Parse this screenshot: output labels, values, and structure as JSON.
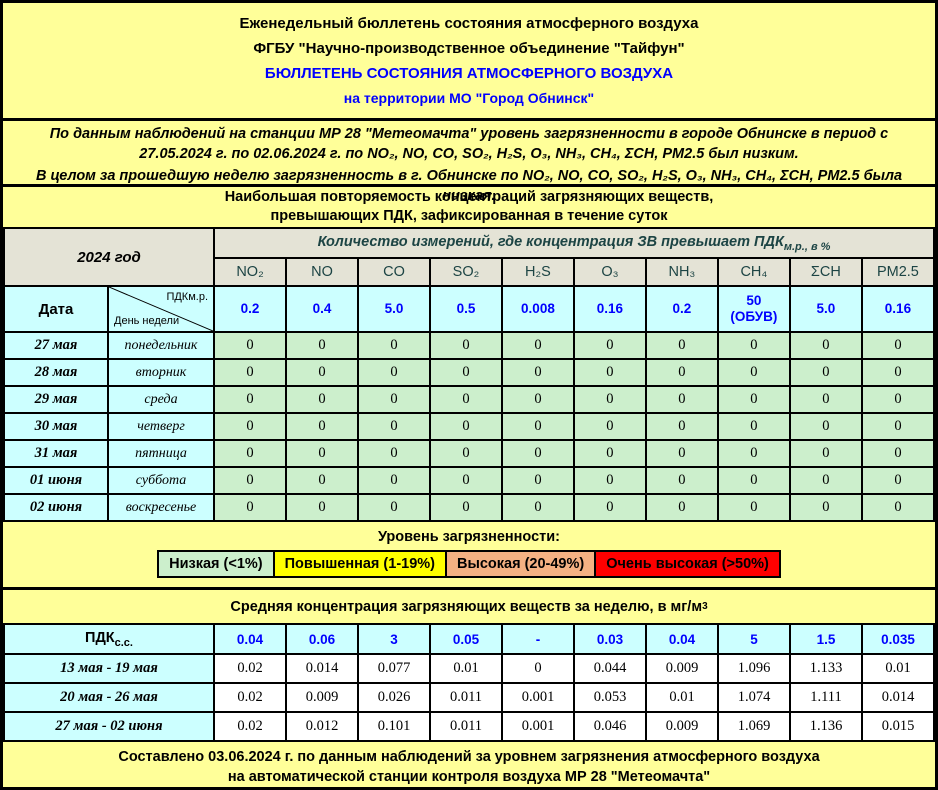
{
  "colors": {
    "page_bg": "#FFFF99",
    "header_band_bg": "#E4E3D6",
    "cyan_cell_bg": "#CCFFFF",
    "green_cell_bg": "#CCEFCC",
    "white_cell_bg": "#FFFFFF",
    "value_text_blue": "#0000FF",
    "title_blue": "#0000FF",
    "header_text_teal": "#1C4444",
    "border_black": "#000000"
  },
  "title_block": {
    "line1": "Еженедельный бюллетень состояния атмосферного воздуха",
    "line2": "ФГБУ \"Научно-производственное объединение \"Тайфун\"",
    "line3": "БЮЛЛЕТЕНЬ СОСТОЯНИЯ АТМОСФЕРНОГО ВОЗДУХА",
    "line4": "на территории МО \"Город Обнинск\""
  },
  "summary": {
    "paragraph1": "По данным наблюдений на станции МР 28 \"Метеомачта\" уровень загрязненности в городе Обнинске в период с 27.05.2024 г. по 02.06.2024 г. по NO₂, NO, CO, SO₂, H₂S, O₃, NH₃, CH₄, ΣCH, PM2.5 был низким.",
    "paragraph2": "В целом за прошедшую неделю загрязненность в г. Обнинске по NO₂, NO, CO, SO₂, H₂S, O₃, NH₃, CH₄, ΣCH, PM2.5 была низкая."
  },
  "freq_section": {
    "heading": "Наибольшая повторяемость концентраций загрязняющих веществ,\nпревышающих ПДК, зафиксированная в течение суток",
    "year_label": "2024 год",
    "measure_header_base": "Количество измерений, где концентрация ЗВ превышает ПДК",
    "measure_header_sub": "м.р., в %",
    "pollutants": [
      "NO₂",
      "NO",
      "CO",
      "SO₂",
      "H₂S",
      "O₃",
      "NH₃",
      "CH₄",
      "ΣCH",
      "PM2.5"
    ],
    "date_label": "Дата",
    "diag_top_label": "ПДКм.р.",
    "diag_bottom_label": "День недели",
    "pdk_values": [
      "0.2",
      "0.4",
      "5.0",
      "0.5",
      "0.008",
      "0.16",
      "0.2",
      "50\n(ОБУВ)",
      "5.0",
      "0.16"
    ],
    "rows": [
      {
        "date": "27 мая",
        "day": "понедельник",
        "values": [
          "0",
          "0",
          "0",
          "0",
          "0",
          "0",
          "0",
          "0",
          "0",
          "0"
        ]
      },
      {
        "date": "28 мая",
        "day": "вторник",
        "values": [
          "0",
          "0",
          "0",
          "0",
          "0",
          "0",
          "0",
          "0",
          "0",
          "0"
        ]
      },
      {
        "date": "29 мая",
        "day": "среда",
        "values": [
          "0",
          "0",
          "0",
          "0",
          "0",
          "0",
          "0",
          "0",
          "0",
          "0"
        ]
      },
      {
        "date": "30 мая",
        "day": "четверг",
        "values": [
          "0",
          "0",
          "0",
          "0",
          "0",
          "0",
          "0",
          "0",
          "0",
          "0"
        ]
      },
      {
        "date": "31 мая",
        "day": "пятница",
        "values": [
          "0",
          "0",
          "0",
          "0",
          "0",
          "0",
          "0",
          "0",
          "0",
          "0"
        ]
      },
      {
        "date": "01 июня",
        "day": "суббота",
        "values": [
          "0",
          "0",
          "0",
          "0",
          "0",
          "0",
          "0",
          "0",
          "0",
          "0"
        ]
      },
      {
        "date": "02 июня",
        "day": "воскресенье",
        "values": [
          "0",
          "0",
          "0",
          "0",
          "0",
          "0",
          "0",
          "0",
          "0",
          "0"
        ]
      }
    ]
  },
  "legend": {
    "heading": "Уровень загрязненности:",
    "items": [
      {
        "label": "Низкая (<1%)",
        "color": "#CCEFCC"
      },
      {
        "label": "Повышенная (1-19%)",
        "color": "#FFFF00"
      },
      {
        "label": "Высокая (20-49%)",
        "color": "#F4B183"
      },
      {
        "label": "Очень высокая (>50%)",
        "color": "#FF0000"
      }
    ]
  },
  "avg_section": {
    "heading_base": "Средняя концентрация загрязняющих веществ за неделю, в мг/м",
    "heading_sup": "3",
    "pdk_label_base": "ПДК",
    "pdk_label_sub": "с.с.",
    "pdk_values": [
      "0.04",
      "0.06",
      "3",
      "0.05",
      "-",
      "0.03",
      "0.04",
      "5",
      "1.5",
      "0.035"
    ],
    "rows": [
      {
        "period": "13 мая - 19 мая",
        "values": [
          "0.02",
          "0.014",
          "0.077",
          "0.01",
          "0",
          "0.044",
          "0.009",
          "1.096",
          "1.133",
          "0.01"
        ]
      },
      {
        "period": "20 мая - 26 мая",
        "values": [
          "0.02",
          "0.009",
          "0.026",
          "0.011",
          "0.001",
          "0.053",
          "0.01",
          "1.074",
          "1.111",
          "0.014"
        ]
      },
      {
        "period": "27 мая - 02 июня",
        "values": [
          "0.02",
          "0.012",
          "0.101",
          "0.011",
          "0.001",
          "0.046",
          "0.009",
          "1.069",
          "1.136",
          "0.015"
        ]
      }
    ]
  },
  "footer": {
    "text": "Составлено 03.06.2024 г. по данным наблюдений за уровнем загрязнения атмосферного воздуха\nна автоматической станции контроля воздуха МР 28 \"Метеомачта\""
  }
}
